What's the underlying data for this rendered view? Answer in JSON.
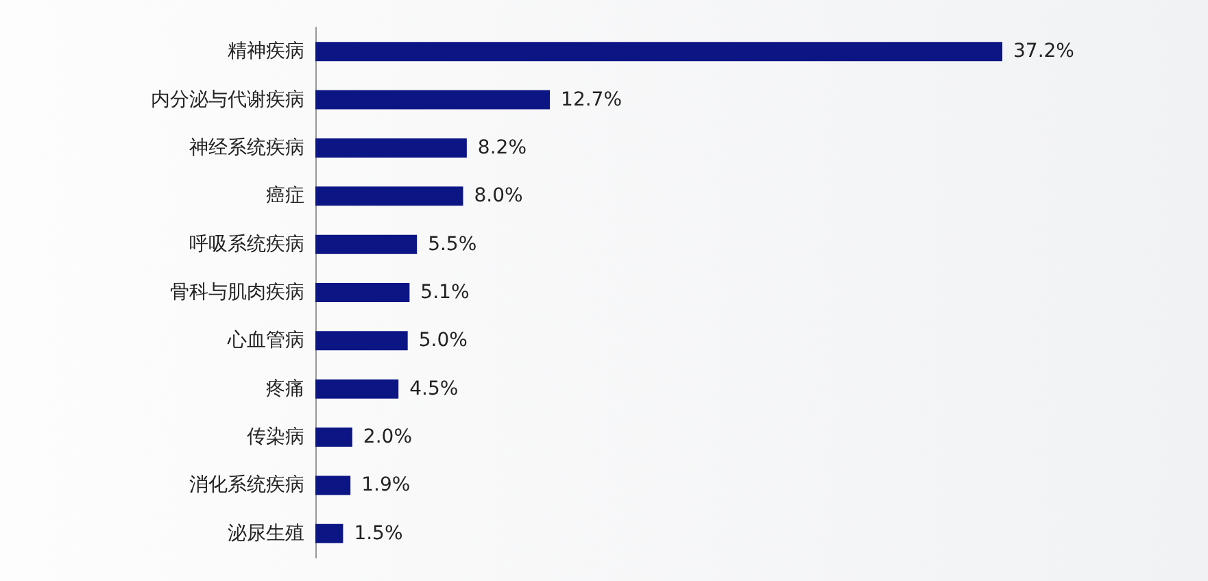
{
  "chart_data": {
    "type": "bar",
    "orientation": "horizontal",
    "categories": [
      "精神疾病",
      "内分泌与代谢疾病",
      "神经系统疾病",
      "癌症",
      "呼吸系统疾病",
      "骨科与肌肉疾病",
      "心血管病",
      "疼痛",
      "传染病",
      "消化系统疾病",
      "泌尿生殖"
    ],
    "values": [
      37.2,
      12.7,
      8.2,
      8.0,
      5.5,
      5.1,
      5.0,
      4.5,
      2.0,
      1.9,
      1.5
    ],
    "value_labels": [
      "37.2%",
      "12.7%",
      "8.2%",
      "8.0%",
      "5.5%",
      "5.1%",
      "5.0%",
      "4.5%",
      "2.0%",
      "1.9%",
      "1.5%"
    ],
    "color": "#0c1584"
  }
}
